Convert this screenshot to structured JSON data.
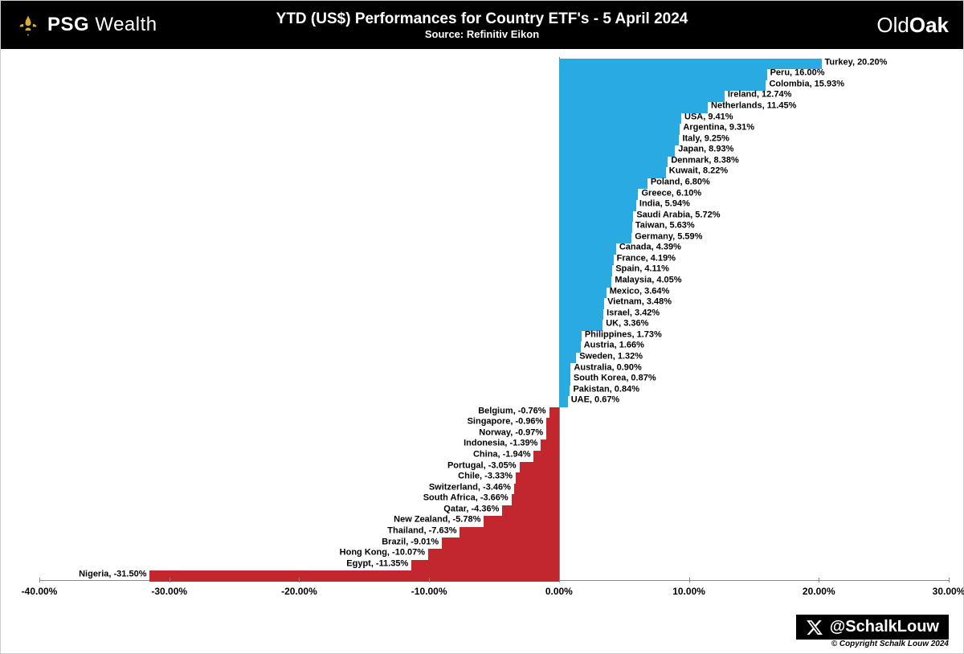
{
  "header": {
    "logo_left_psg": "PSG",
    "logo_left_wealth": "Wealth",
    "title": "YTD (US$) Performances for Country ETF's - 5 April 2024",
    "subtitle": "Source: Refinitiv Eikon",
    "logo_right_old": "Old",
    "logo_right_oak": "Oak"
  },
  "chart": {
    "type": "bar-horizontal-diverging",
    "xlim": [
      -40,
      30
    ],
    "xtick_step": 10,
    "xtick_format_suffix": ".00%",
    "background_color": "#ffffff",
    "positive_color": "#29abe2",
    "negative_color": "#c1272d",
    "label_fontsize": 11,
    "tick_fontsize": 12,
    "bar_gap_ratio": 0.25,
    "series": [
      {
        "country": "Turkey",
        "value": 20.2
      },
      {
        "country": "Peru",
        "value": 16.0
      },
      {
        "country": "Colombia",
        "value": 15.93
      },
      {
        "country": "Ireland",
        "value": 12.74
      },
      {
        "country": "Netherlands",
        "value": 11.45
      },
      {
        "country": "USA",
        "value": 9.41
      },
      {
        "country": "Argentina",
        "value": 9.31
      },
      {
        "country": "Italy",
        "value": 9.25
      },
      {
        "country": "Japan",
        "value": 8.93
      },
      {
        "country": "Denmark",
        "value": 8.38
      },
      {
        "country": "Kuwait",
        "value": 8.22
      },
      {
        "country": "Poland",
        "value": 6.8
      },
      {
        "country": "Greece",
        "value": 6.1
      },
      {
        "country": "India",
        "value": 5.94
      },
      {
        "country": "Saudi Arabia",
        "value": 5.72
      },
      {
        "country": "Taiwan",
        "value": 5.63
      },
      {
        "country": "Germany",
        "value": 5.59
      },
      {
        "country": "Canada",
        "value": 4.39
      },
      {
        "country": "France",
        "value": 4.19
      },
      {
        "country": "Spain",
        "value": 4.11
      },
      {
        "country": "Malaysia",
        "value": 4.05
      },
      {
        "country": "Mexico",
        "value": 3.64
      },
      {
        "country": "Vietnam",
        "value": 3.48
      },
      {
        "country": "Israel",
        "value": 3.42
      },
      {
        "country": "UK",
        "value": 3.36
      },
      {
        "country": "Philippines",
        "value": 1.73
      },
      {
        "country": "Austria",
        "value": 1.66
      },
      {
        "country": "Sweden",
        "value": 1.32
      },
      {
        "country": "Australia",
        "value": 0.9
      },
      {
        "country": "South Korea",
        "value": 0.87
      },
      {
        "country": "Pakistan",
        "value": 0.84
      },
      {
        "country": "UAE",
        "value": 0.67
      },
      {
        "country": "Belgium",
        "value": -0.76
      },
      {
        "country": "Singapore",
        "value": -0.96
      },
      {
        "country": "Norway",
        "value": -0.97
      },
      {
        "country": "Indonesia",
        "value": -1.39
      },
      {
        "country": "China",
        "value": -1.94
      },
      {
        "country": "Portugal",
        "value": -3.05
      },
      {
        "country": "Chile",
        "value": -3.33
      },
      {
        "country": "Switzerland",
        "value": -3.46
      },
      {
        "country": "South Africa",
        "value": -3.66
      },
      {
        "country": "Qatar",
        "value": -4.36
      },
      {
        "country": "New Zealand",
        "value": -5.78
      },
      {
        "country": "Thailand",
        "value": -7.63
      },
      {
        "country": "Brazil",
        "value": -9.01
      },
      {
        "country": "Hong Kong",
        "value": -10.07
      },
      {
        "country": "Egypt",
        "value": -11.35
      },
      {
        "country": "Nigeria",
        "value": -31.5
      }
    ]
  },
  "footer": {
    "handle": "@SchalkLouw",
    "copyright": "© Copyright Schalk Louw 2024"
  }
}
